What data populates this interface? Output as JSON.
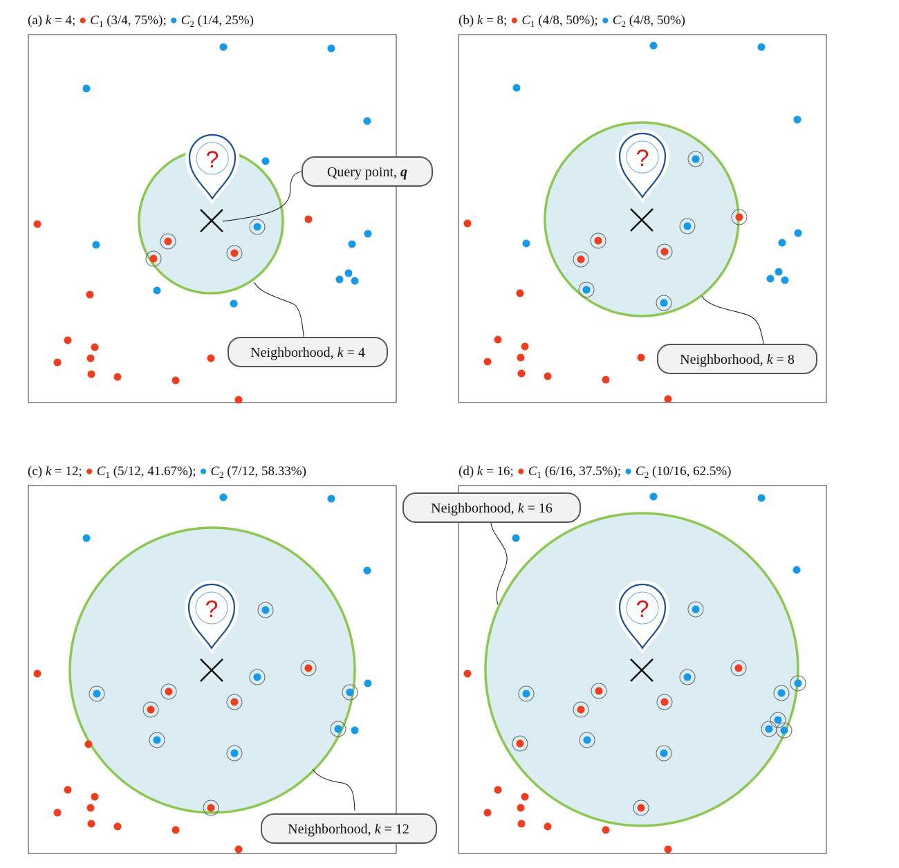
{
  "colors": {
    "c1": "#ee3e1e",
    "c2": "#1699e6",
    "region_fill": "#dbedf2",
    "region_stroke": "#8cc751",
    "pin": "#1a4f9a",
    "question": "#e01818",
    "frame": "#333333"
  },
  "icons": [
    "location-pin-icon",
    "question-mark-icon",
    "query-cross-icon"
  ],
  "panels": [
    {
      "id": "a",
      "title": {
        "prefix": "(a) ",
        "k_var": "k",
        "k_eq": " = 4; ",
        "c1_label": "C",
        "c1_sub": "1",
        "c1_stats": " (3/4, 75%);  ",
        "c2_label": "C",
        "c2_sub": "2",
        "c2_stats": " (1/4, 25%)"
      },
      "k": 4,
      "callouts": [
        {
          "kind": "query",
          "text": "Query point, ",
          "var": "q"
        },
        {
          "kind": "neighborhood",
          "text": "Neighborhood, ",
          "var": "k",
          "value": " = 4"
        }
      ]
    },
    {
      "id": "b",
      "title": {
        "prefix": "(b) ",
        "k_var": "k",
        "k_eq": " = 8; ",
        "c1_label": "C",
        "c1_sub": "1",
        "c1_stats": " (4/8, 50%);  ",
        "c2_label": "C",
        "c2_sub": "2",
        "c2_stats": " (4/8, 50%)"
      },
      "k": 8,
      "callouts": [
        {
          "kind": "neighborhood",
          "text": "Neighborhood, ",
          "var": "k",
          "value": " = 8"
        }
      ]
    },
    {
      "id": "c",
      "title": {
        "prefix": "(c) ",
        "k_var": "k",
        "k_eq": " = 12; ",
        "c1_label": "C",
        "c1_sub": "1",
        "c1_stats": " (5/12, 41.67%);  ",
        "c2_label": "C",
        "c2_sub": "2",
        "c2_stats": " (7/12, 58.33%)"
      },
      "k": 12,
      "callouts": [
        {
          "kind": "neighborhood",
          "text": "Neighborhood, ",
          "var": "k",
          "value": " = 12"
        }
      ]
    },
    {
      "id": "d",
      "title": {
        "prefix": "(d) ",
        "k_var": "k",
        "k_eq": " = 16; ",
        "c1_label": "C",
        "c1_sub": "1",
        "c1_stats": " (6/16, 37.5%);  ",
        "c2_label": "C",
        "c2_sub": "2",
        "c2_stats": " (10/16, 62.5%)"
      },
      "k": 16,
      "callouts": [
        {
          "kind": "neighborhood",
          "text": "Neighborhood, ",
          "var": "k",
          "value": " = 16"
        }
      ]
    }
  ]
}
